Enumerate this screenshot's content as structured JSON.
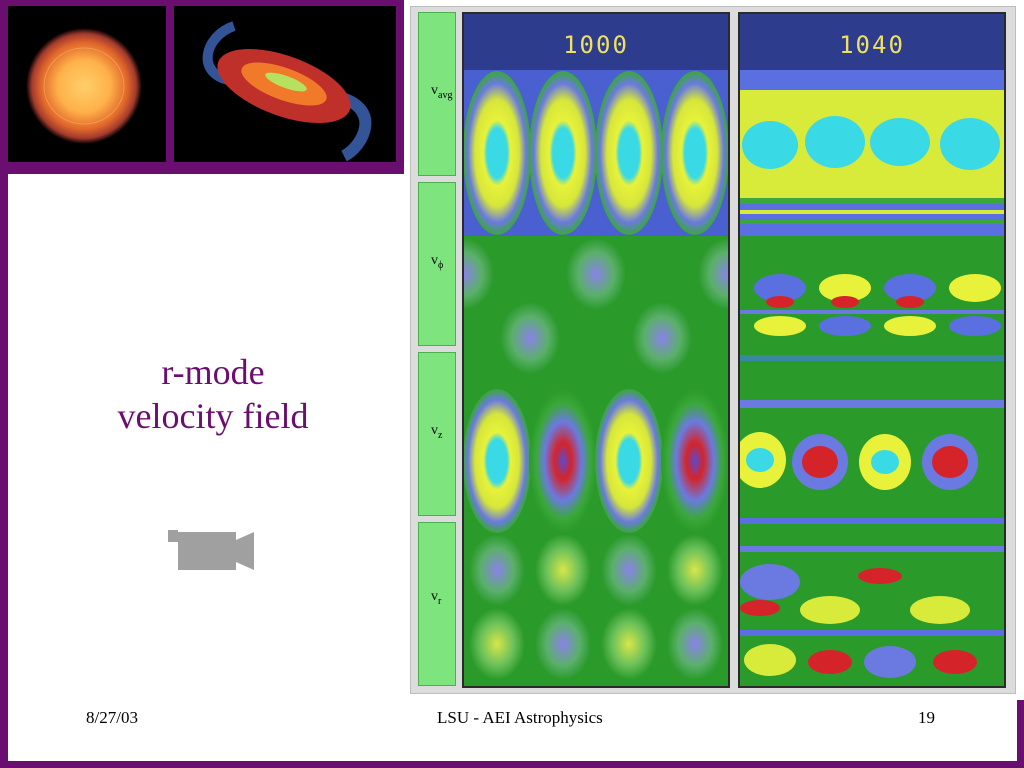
{
  "slide": {
    "title_line1": "r-mode",
    "title_line2": "velocity field",
    "footer_date": "8/27/03",
    "footer_center": "LSU - AEI Astrophysics",
    "footer_page": "19"
  },
  "figure": {
    "panels": [
      {
        "header": "1000"
      },
      {
        "header": "1040"
      }
    ],
    "row_labels": [
      {
        "base": "v",
        "sub": "avg"
      },
      {
        "base": "v",
        "sub": "ϕ"
      },
      {
        "base": "v",
        "sub": "z"
      },
      {
        "base": "v",
        "sub": "r"
      }
    ]
  },
  "colors": {
    "accent": "#6a0f6f",
    "label_green": "#7ee57e",
    "header_text": "#f0e060"
  },
  "icons": [
    "video-camera-icon"
  ]
}
